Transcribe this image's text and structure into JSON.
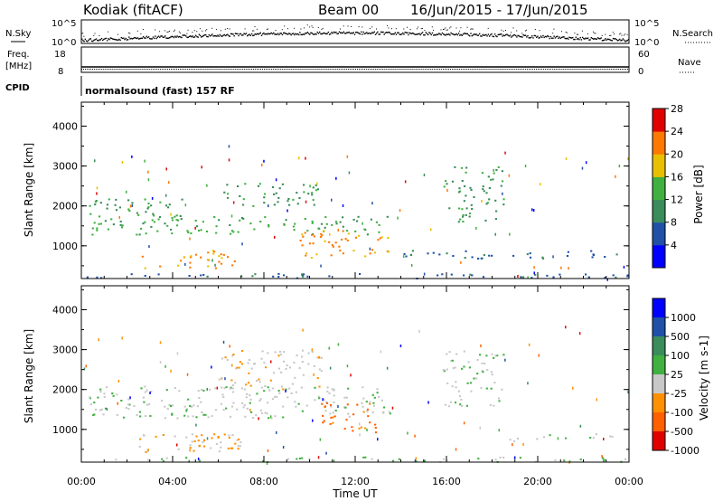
{
  "header": {
    "station": "Kodiak (fitACF)",
    "beam": "Beam 00",
    "date_range": "16/Jun/2015 - 17/Jun/2015"
  },
  "aux_panels": {
    "nsky_label": "N.Sky",
    "nsearch_label": "N.Search",
    "count_ticks_left": [
      "10^5",
      "10^0"
    ],
    "count_ticks_right": [
      "10^5",
      "10^0"
    ],
    "freq_label_top": "Freq.",
    "freq_label_unit": "[MHz]",
    "freq_ticks": [
      "18",
      "8"
    ],
    "nave_label": "Nave",
    "nave_ticks": [
      "60",
      "0"
    ],
    "cpid_label": "CPID",
    "cpid_text": "normalsound (fast) 157 RF"
  },
  "chart_data": [
    {
      "type": "heatmap",
      "name": "power",
      "ylabel": "Slant Range [km]",
      "y_ticks": [
        "1000",
        "2000",
        "3000",
        "4000"
      ],
      "ylim": [
        180,
        4600
      ],
      "xlim": [
        0,
        24
      ],
      "colorbar": {
        "label": "Power [dB]",
        "ticks": [
          "4",
          "8",
          "12",
          "16",
          "20",
          "24",
          "28"
        ],
        "range": [
          0,
          30
        ],
        "colors": [
          "#0000ff",
          "#2050a8",
          "#3a8c5a",
          "#40b040",
          "#e8c000",
          "#ff7800",
          "#e00000"
        ]
      },
      "bands": [
        {
          "t0": 0.1,
          "t1": 24,
          "r0": 200,
          "r1": 320,
          "c": 1
        },
        {
          "t0": 2.5,
          "t1": 7.0,
          "r0": 450,
          "r1": 900,
          "c": 5
        },
        {
          "t0": 0.3,
          "t1": 13.5,
          "r0": 1300,
          "r1": 1800,
          "c": 3
        },
        {
          "t0": 0.3,
          "t1": 4.5,
          "r0": 1800,
          "r1": 2200,
          "c": 2
        },
        {
          "t0": 6.0,
          "t1": 10.5,
          "r0": 2000,
          "r1": 2600,
          "c": 2
        },
        {
          "t0": 9.5,
          "t1": 13.5,
          "r0": 700,
          "r1": 1400,
          "c": 5
        },
        {
          "t0": 15.8,
          "t1": 18.5,
          "r0": 1600,
          "r1": 3000,
          "c": 2
        },
        {
          "t0": 14.0,
          "t1": 24,
          "r0": 700,
          "r1": 900,
          "c": 1
        }
      ]
    },
    {
      "type": "heatmap",
      "name": "velocity",
      "ylabel": "Slant Range [km]",
      "y_ticks": [
        "1000",
        "2000",
        "3000",
        "4000"
      ],
      "ylim": [
        180,
        4600
      ],
      "xlim": [
        0,
        24
      ],
      "xlabel": "Time UT",
      "x_ticks": [
        "00:00",
        "04:00",
        "08:00",
        "12:00",
        "16:00",
        "20:00",
        "00:00"
      ],
      "colorbar": {
        "label": "Velocity [m s-1]",
        "ticks": [
          "1000",
          "500",
          "100",
          "25",
          "-25",
          "-100",
          "-500",
          "-1000"
        ],
        "colors": [
          "#0000ff",
          "#2050a8",
          "#3a8c5a",
          "#40b040",
          "#c8c8c8",
          "#ff9000",
          "#ff6000",
          "#e00000"
        ]
      },
      "bands": [
        {
          "t0": 0.1,
          "t1": 24,
          "r0": 200,
          "r1": 320,
          "c": 3
        },
        {
          "t0": 2.5,
          "t1": 7.0,
          "r0": 450,
          "r1": 900,
          "c": 4
        },
        {
          "t0": 4.5,
          "t1": 7.0,
          "r0": 500,
          "r1": 900,
          "c": 5
        },
        {
          "t0": 0.3,
          "t1": 13.5,
          "r0": 1300,
          "r1": 2100,
          "c": 4
        },
        {
          "t0": 6.0,
          "t1": 10.5,
          "r0": 2000,
          "r1": 3000,
          "c": 4
        },
        {
          "t0": 10.5,
          "t1": 13.0,
          "r0": 900,
          "r1": 1700,
          "c": 6
        },
        {
          "t0": 15.8,
          "t1": 18.5,
          "r0": 1600,
          "r1": 3000,
          "c": 4
        },
        {
          "t0": 18.5,
          "t1": 24,
          "r0": 700,
          "r1": 900,
          "c": 4
        }
      ]
    }
  ]
}
